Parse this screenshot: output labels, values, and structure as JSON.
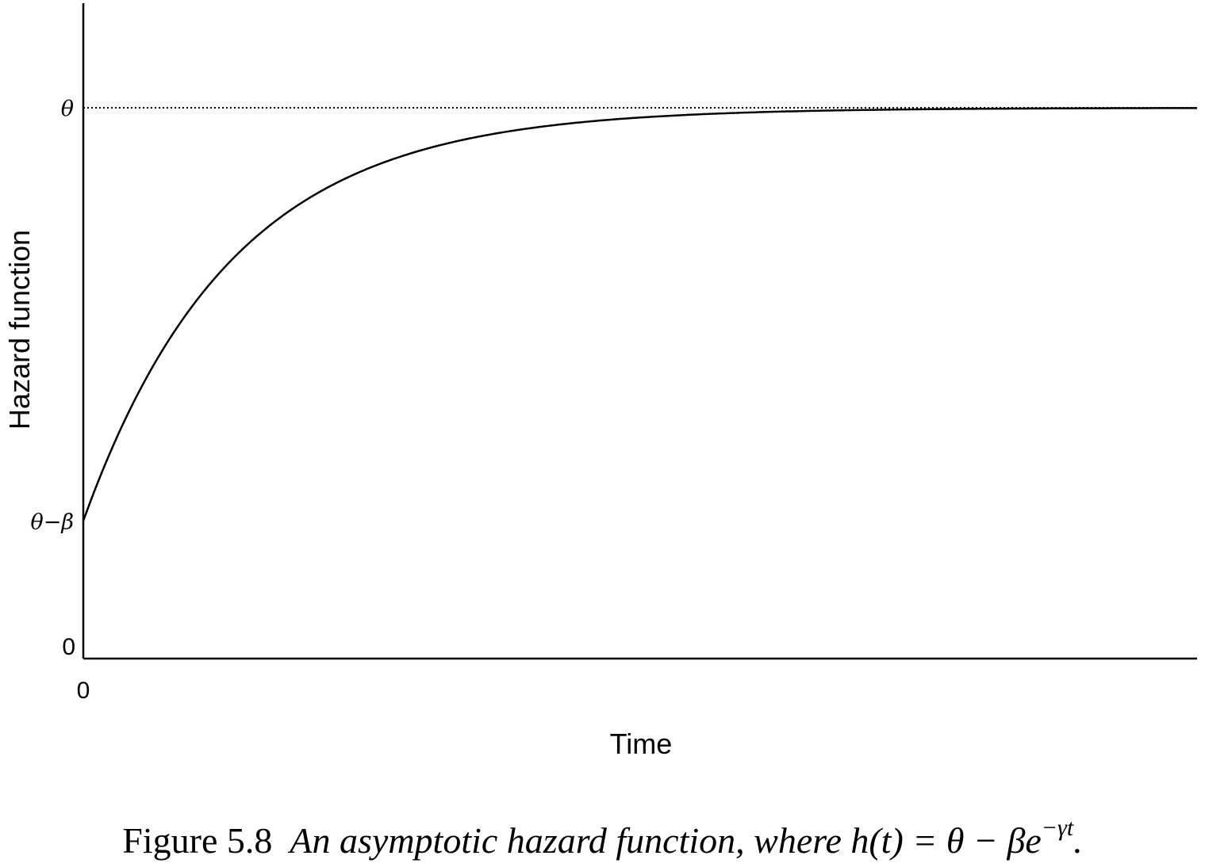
{
  "chart_data": {
    "type": "line",
    "title": "",
    "xlabel": "Time",
    "ylabel": "Hazard function",
    "x_ticks": [
      "0"
    ],
    "y_ticks": [
      {
        "label": "0",
        "value": 0
      },
      {
        "label": "θ−β",
        "value": 0.25
      },
      {
        "label": "θ",
        "value": 1
      }
    ],
    "xlim": [
      0,
      10
    ],
    "ylim": [
      0,
      1.19
    ],
    "grid": false,
    "legend": "none",
    "curve": {
      "theta": 1,
      "beta": 0.75,
      "gamma": 0.75
    },
    "reference_line": {
      "value": 1,
      "style": "dotted"
    }
  },
  "caption": {
    "label": "Figure 5.8",
    "text_a": "An asymptotic hazard function, where h(t) = θ − βe",
    "superscript": "−γt",
    "text_b": "."
  }
}
